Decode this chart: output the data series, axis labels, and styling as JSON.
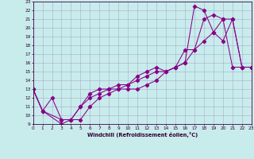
{
  "xlabel": "Windchill (Refroidissement éolien,°C)",
  "xlim": [
    0,
    23
  ],
  "ylim": [
    9,
    23
  ],
  "xticks": [
    0,
    1,
    2,
    3,
    4,
    5,
    6,
    7,
    8,
    9,
    10,
    11,
    12,
    13,
    14,
    15,
    16,
    17,
    18,
    19,
    20,
    21,
    22,
    23
  ],
  "yticks": [
    9,
    10,
    11,
    12,
    13,
    14,
    15,
    16,
    17,
    18,
    19,
    20,
    21,
    22,
    23
  ],
  "bg_color": "#c8ecec",
  "line_color": "#880088",
  "grid_color": "#aaaacc",
  "curve1_x": [
    0,
    1,
    3,
    4,
    5,
    6,
    7,
    8,
    9,
    10,
    11,
    12,
    13,
    14,
    15,
    16,
    17,
    18,
    19,
    20,
    21,
    22,
    23
  ],
  "curve1_y": [
    13,
    10.5,
    9.0,
    9.5,
    9.5,
    11.0,
    12.0,
    12.5,
    13.0,
    13.0,
    13.0,
    13.5,
    14.0,
    15.0,
    15.5,
    16.0,
    22.5,
    22.0,
    19.5,
    18.5,
    21.0,
    15.5,
    15.5
  ],
  "curve2_x": [
    0,
    1,
    2,
    3,
    4,
    5,
    6,
    7,
    8,
    9,
    10,
    11,
    12,
    13,
    14,
    15,
    16,
    17,
    18,
    19,
    20,
    21,
    22,
    23
  ],
  "curve2_y": [
    13,
    10.5,
    12.0,
    9.5,
    9.5,
    11.0,
    12.0,
    12.5,
    13.0,
    13.0,
    13.5,
    14.0,
    14.5,
    15.0,
    15.0,
    15.5,
    16.0,
    17.5,
    18.5,
    19.5,
    21.0,
    21.0,
    15.5,
    15.5
  ],
  "curve3_x": [
    0,
    1,
    3,
    4,
    5,
    6,
    7,
    8,
    9,
    10,
    11,
    12,
    13,
    14,
    15,
    16,
    17,
    18,
    19,
    20,
    21,
    22,
    23
  ],
  "curve3_y": [
    13,
    10.5,
    9.5,
    9.5,
    11.0,
    12.5,
    13.0,
    13.0,
    13.5,
    13.5,
    14.5,
    15.0,
    15.5,
    15.0,
    15.5,
    17.5,
    17.5,
    21.0,
    21.5,
    21.0,
    15.5,
    15.5,
    15.5
  ]
}
